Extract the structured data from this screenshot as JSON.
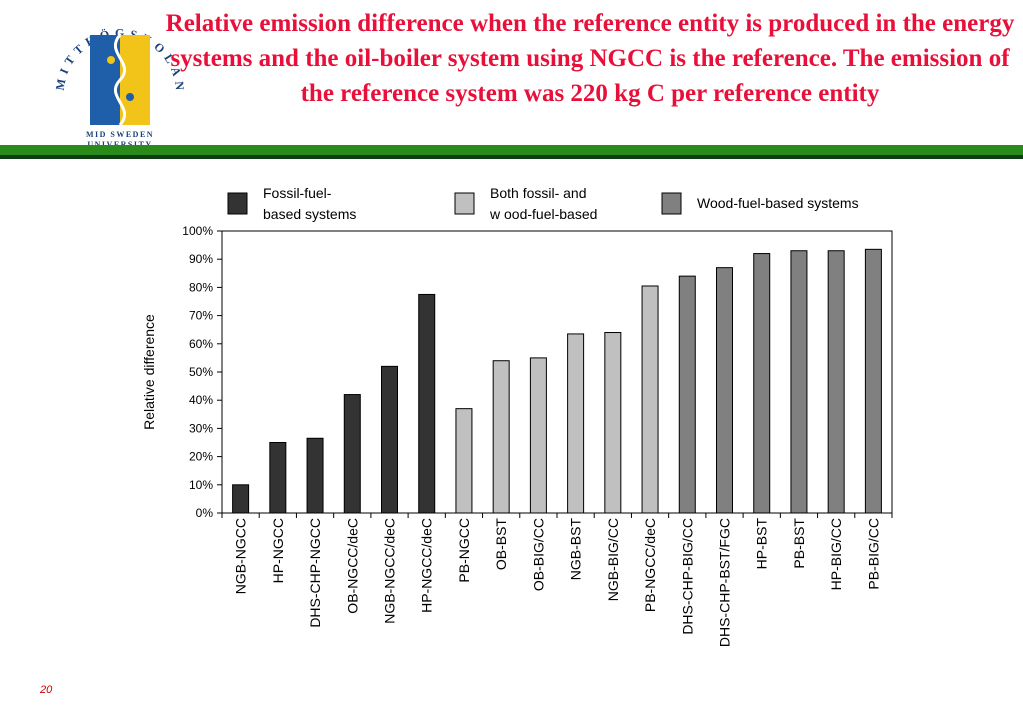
{
  "header": {
    "title": "Relative emission difference when the reference entity is produced in the energy systems and the oil-boiler system using NGCC is the reference. The emission of the reference system was 220 kg C per reference entity",
    "logo": {
      "arc_text": "MITTHÖGSKOLAN",
      "sub_line1": "MID SWEDEN",
      "sub_line2": "UNIVERSITY"
    }
  },
  "colors": {
    "title": "#e8103a",
    "rule_green": "#2a8a1a",
    "rule_dark": "#0f3d12",
    "fossil": "#333333",
    "both": "#c0c0c0",
    "wood": "#808080",
    "logo_blue": "#1f5ea8",
    "logo_yellow": "#f2c318",
    "logo_text": "#1a3f7a",
    "page_number": "#cc0000"
  },
  "page_number": "20",
  "chart_data": {
    "type": "bar",
    "title": "",
    "xlabel": "",
    "ylabel": "Relative difference",
    "ylim": [
      0,
      100
    ],
    "y_ticks": [
      "0%",
      "10%",
      "20%",
      "30%",
      "40%",
      "50%",
      "60%",
      "70%",
      "80%",
      "90%",
      "100%"
    ],
    "grid": false,
    "legend_position": "top",
    "legend": [
      {
        "key": "fossil",
        "line1": "Fossil-fuel-",
        "line2": "based systems"
      },
      {
        "key": "both",
        "line1": "Both fossil- and",
        "line2": "w ood-fuel-based"
      },
      {
        "key": "wood",
        "line1": "Wood-fuel-based systems",
        "line2": ""
      }
    ],
    "categories": [
      "NGB-NGCC",
      "HP-NGCC",
      "DHS-CHP-NGCC",
      "OB-NGCC/deC",
      "NGB-NGCC/deC",
      "HP-NGCC/deC",
      "PB-NGCC",
      "OB-BST",
      "OB-BIG/CC",
      "NGB-BST",
      "NGB-BIG/CC",
      "PB-NGCC/deC",
      "DHS-CHP-BIG/CC",
      "DHS-CHP-BST/FGC",
      "HP-BST",
      "PB-BST",
      "HP-BIG/CC",
      "PB-BIG/CC"
    ],
    "values": [
      10,
      25,
      26.5,
      42,
      52,
      77.5,
      37,
      54,
      55,
      63.5,
      64,
      80.5,
      84,
      87,
      92,
      93,
      93,
      93.5
    ],
    "groups": [
      "fossil",
      "fossil",
      "fossil",
      "fossil",
      "fossil",
      "fossil",
      "both",
      "both",
      "both",
      "both",
      "both",
      "both",
      "wood",
      "wood",
      "wood",
      "wood",
      "wood",
      "wood"
    ]
  }
}
